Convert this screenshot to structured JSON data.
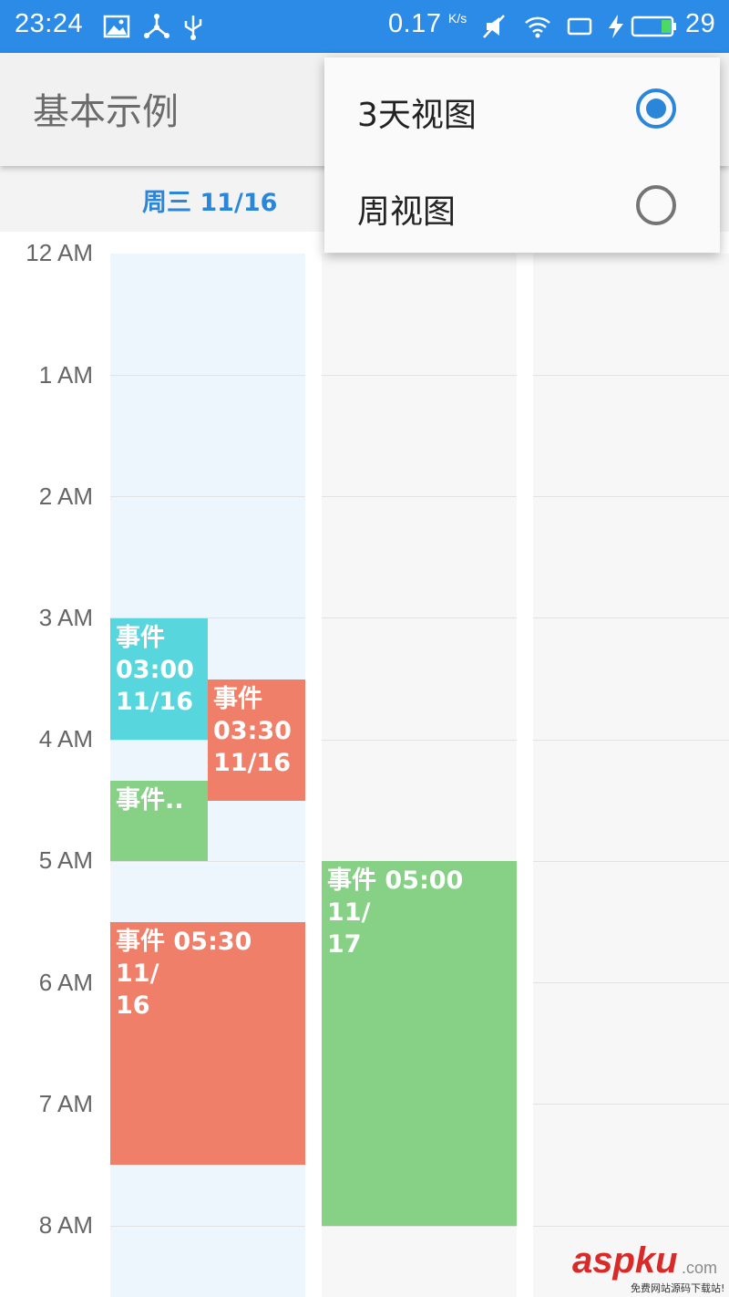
{
  "status_bar": {
    "time": "23:24",
    "net_speed": "0.17",
    "net_unit": "K/s",
    "battery_level": "29",
    "icons": [
      "image-icon",
      "share-icon",
      "usb-icon",
      "mute-icon",
      "wifi-icon",
      "screen-icon",
      "charging-icon",
      "battery-icon"
    ]
  },
  "toolbar": {
    "title": "基本示例"
  },
  "header": {
    "day_label": "周三 11/16"
  },
  "hours": [
    "12 AM",
    "1 AM",
    "2 AM",
    "3 AM",
    "4 AM",
    "5 AM",
    "6 AM",
    "7 AM",
    "8 AM"
  ],
  "events": [
    {
      "text": "事件 03:00 11/16",
      "line1": "事件",
      "line2": "03:00",
      "line3": "11/16",
      "color": "#58d6de",
      "day": 0
    },
    {
      "text": "事件 03:30 11/16",
      "line1": "事件",
      "line2": "03:30",
      "line3": "11/16",
      "color": "#f07f6a",
      "day": 0
    },
    {
      "text": "事件..",
      "line1": "事件..",
      "color": "#86d186",
      "day": 0
    },
    {
      "text": "事件 05:30 11/16",
      "line1": "事件 05:30 11/",
      "line2": "16",
      "color": "#f07f6a",
      "day": 0
    },
    {
      "text": "事件 05:00 11/17",
      "line1": "事件 05:00 11/",
      "line2": "17",
      "color": "#86d186",
      "day": 1
    }
  ],
  "menu": {
    "items": [
      {
        "label": "3天视图",
        "checked": true
      },
      {
        "label": "周视图",
        "checked": false
      }
    ]
  },
  "watermark": {
    "main": "aspku",
    "domain": ".com",
    "sub": "免费网站源码下载站!"
  },
  "colors": {
    "accent": "#2a86d8",
    "status_bar": "#2b8be6",
    "today_column": "#eef6fd"
  }
}
